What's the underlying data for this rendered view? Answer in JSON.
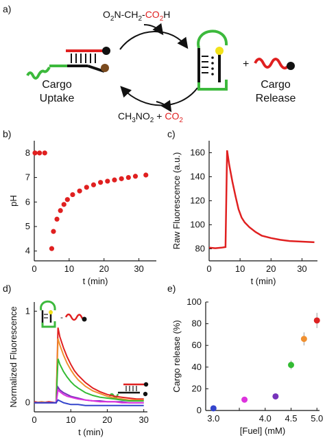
{
  "panels": {
    "a": {
      "label": "a)",
      "reagent_top": {
        "base": "O",
        "sub1": "2",
        "mid": "N-CH",
        "sub2": "2",
        "dash": "-",
        "red_part": "CO",
        "red_sub": "2",
        "red_end": "H"
      },
      "products_bottom": {
        "p1": "CH",
        "p1_sub": "3",
        "p2": "NO",
        "p2_sub": "2",
        "plus": " + ",
        "red_part": "CO",
        "red_sub": "2"
      },
      "left_label_1": "Cargo",
      "left_label_2": "Uptake",
      "right_label_1": "Cargo",
      "right_label_2": "Release",
      "plus_sign": "+"
    },
    "b": {
      "label": "b)"
    },
    "c": {
      "label": "c)"
    },
    "d": {
      "label": "d)",
      "minus_sign": "-"
    },
    "e": {
      "label": "e)"
    }
  },
  "colors": {
    "red": "#e02020",
    "green": "#3cb93c",
    "black": "#111111",
    "yellow": "#f2e21a",
    "brown": "#7a4a1e",
    "e_points": [
      "#3344cc",
      "#dd33dd",
      "#7733bb",
      "#33bb33",
      "#f09030",
      "#dd2222"
    ]
  },
  "chart_data": [
    {
      "panel": "b",
      "type": "scatter",
      "xlabel": "t (min)",
      "ylabel": "pH",
      "xlim": [
        0,
        35
      ],
      "ylim": [
        3.6,
        8.5
      ],
      "xticks": [
        0,
        10,
        20,
        30
      ],
      "yticks": [
        4,
        5,
        6,
        7,
        8
      ],
      "x": [
        0.2,
        1.5,
        3,
        5,
        5.5,
        6.5,
        7.5,
        8.5,
        9.5,
        11,
        13,
        15,
        17,
        19,
        21,
        23,
        25,
        27,
        29,
        32
      ],
      "y": [
        8,
        8,
        8,
        4.1,
        4.8,
        5.3,
        5.65,
        5.9,
        6.1,
        6.3,
        6.45,
        6.6,
        6.7,
        6.8,
        6.85,
        6.9,
        6.95,
        7.0,
        7.05,
        7.1
      ]
    },
    {
      "panel": "c",
      "type": "line",
      "xlabel": "t (min)",
      "ylabel": "Raw Fluorescence (a.u.)",
      "xlim": [
        0,
        35
      ],
      "ylim": [
        70,
        170
      ],
      "xticks": [
        0,
        10,
        20,
        30
      ],
      "yticks": [
        80,
        100,
        120,
        140,
        160
      ],
      "x": [
        0,
        2,
        4,
        5.3,
        5.8,
        6.5,
        7.5,
        8.5,
        9.5,
        10.5,
        11.5,
        13,
        15,
        17,
        20,
        23,
        26,
        30,
        34
      ],
      "y": [
        81,
        80.5,
        81,
        81.5,
        162,
        150,
        136,
        124,
        113,
        106,
        102,
        98,
        94,
        91,
        89,
        87.5,
        86.5,
        86,
        85.5
      ]
    },
    {
      "panel": "d",
      "type": "line",
      "xlabel": "t (min)",
      "ylabel": "Normalized Fluorescence",
      "xlim": [
        0,
        31
      ],
      "ylim": [
        -0.1,
        1.1
      ],
      "xticks": [
        0,
        10,
        20,
        30
      ],
      "yticks": [
        0,
        1
      ],
      "x": [
        0,
        2,
        4,
        6,
        6.5,
        7,
        8,
        9,
        10,
        11,
        12,
        14,
        16,
        18,
        20,
        22,
        24,
        26,
        28,
        30
      ],
      "series": [
        {
          "color": "#e02020",
          "values": [
            0.01,
            0.0,
            0.01,
            0.0,
            0.82,
            0.72,
            0.6,
            0.5,
            0.42,
            0.35,
            0.3,
            0.22,
            0.16,
            0.12,
            0.09,
            0.07,
            0.06,
            0.05,
            0.04,
            0.04
          ]
        },
        {
          "color": "#f09030",
          "values": [
            0.0,
            0.01,
            0.0,
            0.0,
            0.7,
            0.63,
            0.52,
            0.43,
            0.36,
            0.3,
            0.25,
            0.18,
            0.13,
            0.1,
            0.07,
            0.05,
            0.04,
            0.03,
            0.03,
            0.03
          ]
        },
        {
          "color": "#33bb33",
          "values": [
            0.0,
            0.0,
            0.0,
            0.0,
            0.48,
            0.42,
            0.34,
            0.28,
            0.23,
            0.19,
            0.16,
            0.11,
            0.08,
            0.06,
            0.05,
            0.04,
            0.03,
            0.02,
            0.02,
            0.02
          ]
        },
        {
          "color": "#7733bb",
          "values": [
            0.0,
            0.0,
            0.0,
            0.0,
            0.17,
            0.14,
            0.11,
            0.09,
            0.07,
            0.06,
            0.05,
            0.03,
            0.02,
            0.02,
            0.01,
            0.01,
            0.01,
            0.0,
            0.0,
            0.0
          ]
        },
        {
          "color": "#dd33dd",
          "values": [
            0.0,
            0.0,
            0.0,
            0.0,
            0.14,
            0.12,
            0.09,
            0.07,
            0.06,
            0.05,
            0.04,
            0.03,
            0.02,
            0.01,
            0.01,
            0.01,
            0.0,
            0.0,
            0.0,
            0.0
          ]
        },
        {
          "color": "#3344cc",
          "values": [
            0.0,
            0.0,
            0.0,
            0.0,
            0.03,
            0.02,
            0.0,
            -0.01,
            -0.02,
            -0.02,
            -0.02,
            -0.03,
            -0.03,
            -0.03,
            -0.03,
            -0.03,
            -0.03,
            -0.03,
            -0.03,
            -0.03
          ]
        }
      ]
    },
    {
      "panel": "e",
      "type": "scatter",
      "xlabel": "[Fuel] (mM)",
      "ylabel": "Cargo release (%)",
      "xlim": [
        2.85,
        5.05
      ],
      "ylim": [
        0,
        100
      ],
      "xticks": [
        3.0,
        3.5,
        4.0,
        4.5,
        5.0
      ],
      "xticklabels": [
        "3.0",
        "",
        "4.0",
        "4.5",
        "5.0"
      ],
      "yticks": [
        0,
        20,
        40,
        60,
        80,
        100
      ],
      "x": [
        3.0,
        3.6,
        4.2,
        4.5,
        4.75,
        5.0
      ],
      "y": [
        2,
        10,
        13,
        42,
        66,
        83
      ],
      "yerr": [
        1,
        2,
        2,
        4,
        6,
        7
      ]
    }
  ]
}
